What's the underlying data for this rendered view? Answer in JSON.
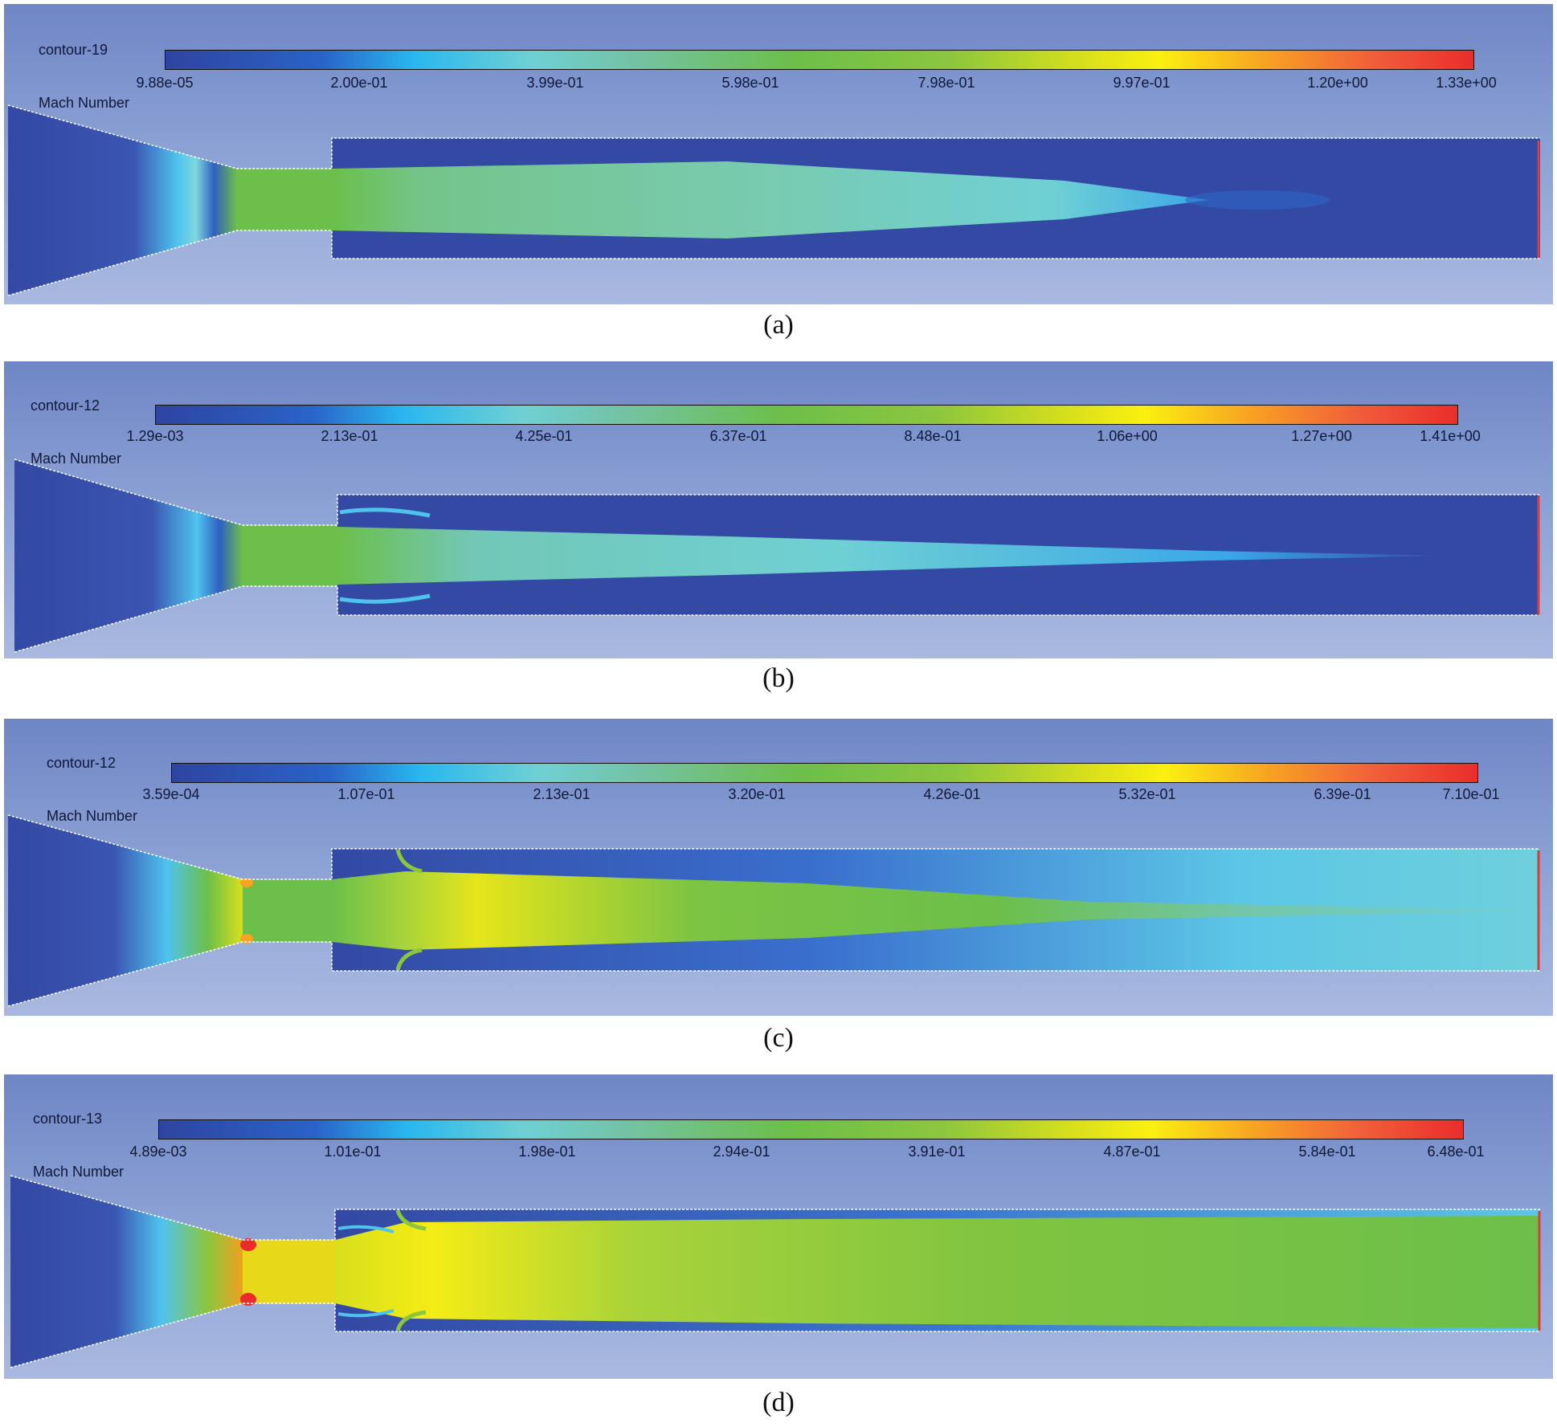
{
  "panels": [
    {
      "id": "a",
      "title_line1": "contour-19",
      "title_line2": "Mach Number",
      "ticks": [
        "9.88e-05",
        "2.00e-01",
        "3.99e-01",
        "5.98e-01",
        "7.98e-01",
        "9.97e-01",
        "1.20e+00",
        "1.33e+00"
      ],
      "caption": "(a)"
    },
    {
      "id": "b",
      "title_line1": "contour-12",
      "title_line2": "Mach Number",
      "ticks": [
        "1.29e-03",
        "2.13e-01",
        "4.25e-01",
        "6.37e-01",
        "8.48e-01",
        "1.06e+00",
        "1.27e+00",
        "1.41e+00"
      ],
      "caption": "(b)"
    },
    {
      "id": "c",
      "title_line1": "contour-12",
      "title_line2": "Mach Number",
      "ticks": [
        "3.59e-04",
        "1.07e-01",
        "2.13e-01",
        "3.20e-01",
        "4.26e-01",
        "5.32e-01",
        "6.39e-01",
        "7.10e-01"
      ],
      "caption": "(c)"
    },
    {
      "id": "d",
      "title_line1": "contour-13",
      "title_line2": "Mach Number",
      "ticks": [
        "4.89e-03",
        "1.01e-01",
        "1.98e-01",
        "2.94e-01",
        "3.91e-01",
        "4.87e-01",
        "5.84e-01",
        "6.48e-01"
      ],
      "caption": "(d)"
    }
  ],
  "colors": {
    "background_dark": "#3349a3",
    "jet_green": "#6cbf4a",
    "jet_cyan": "#6fd0d4",
    "jet_yellow": "#fbf010",
    "jet_red": "#ea2d2c",
    "outlet_edge": "#e03a3a"
  }
}
